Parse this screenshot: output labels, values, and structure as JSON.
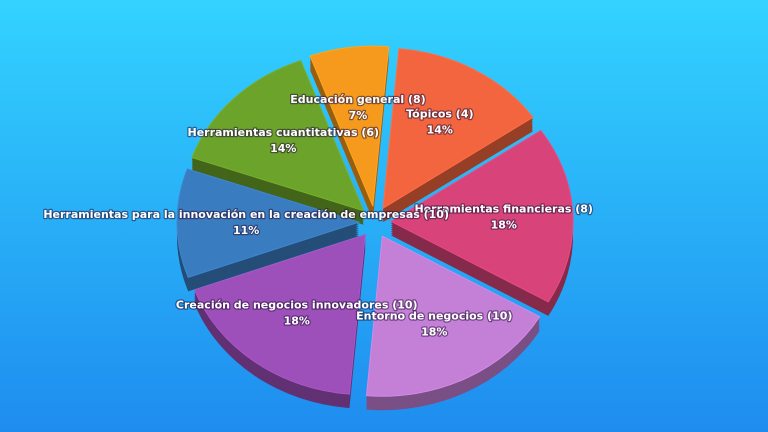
{
  "chart_data": {
    "type": "pie",
    "categories": [
      "Tópicos (4)",
      "Herramientas financieras (8)",
      "Entorno de negocios (10)",
      "Creación de negocios innovadores (10)",
      "Herramientas para la innovación en la creación de empresas (10)",
      "Herramientas cuantitativas (6)",
      "Educación general (8)"
    ],
    "values": [
      14,
      18,
      18,
      18,
      11,
      14,
      7
    ],
    "value_labels": [
      "14%",
      "18%",
      "18%",
      "18%",
      "11%",
      "14%",
      "7%"
    ],
    "colors": [
      "#f2653f",
      "#d84479",
      "#c47fd6",
      "#9d4fba",
      "#3a7cc0",
      "#6ca32a",
      "#f59a1c"
    ]
  }
}
